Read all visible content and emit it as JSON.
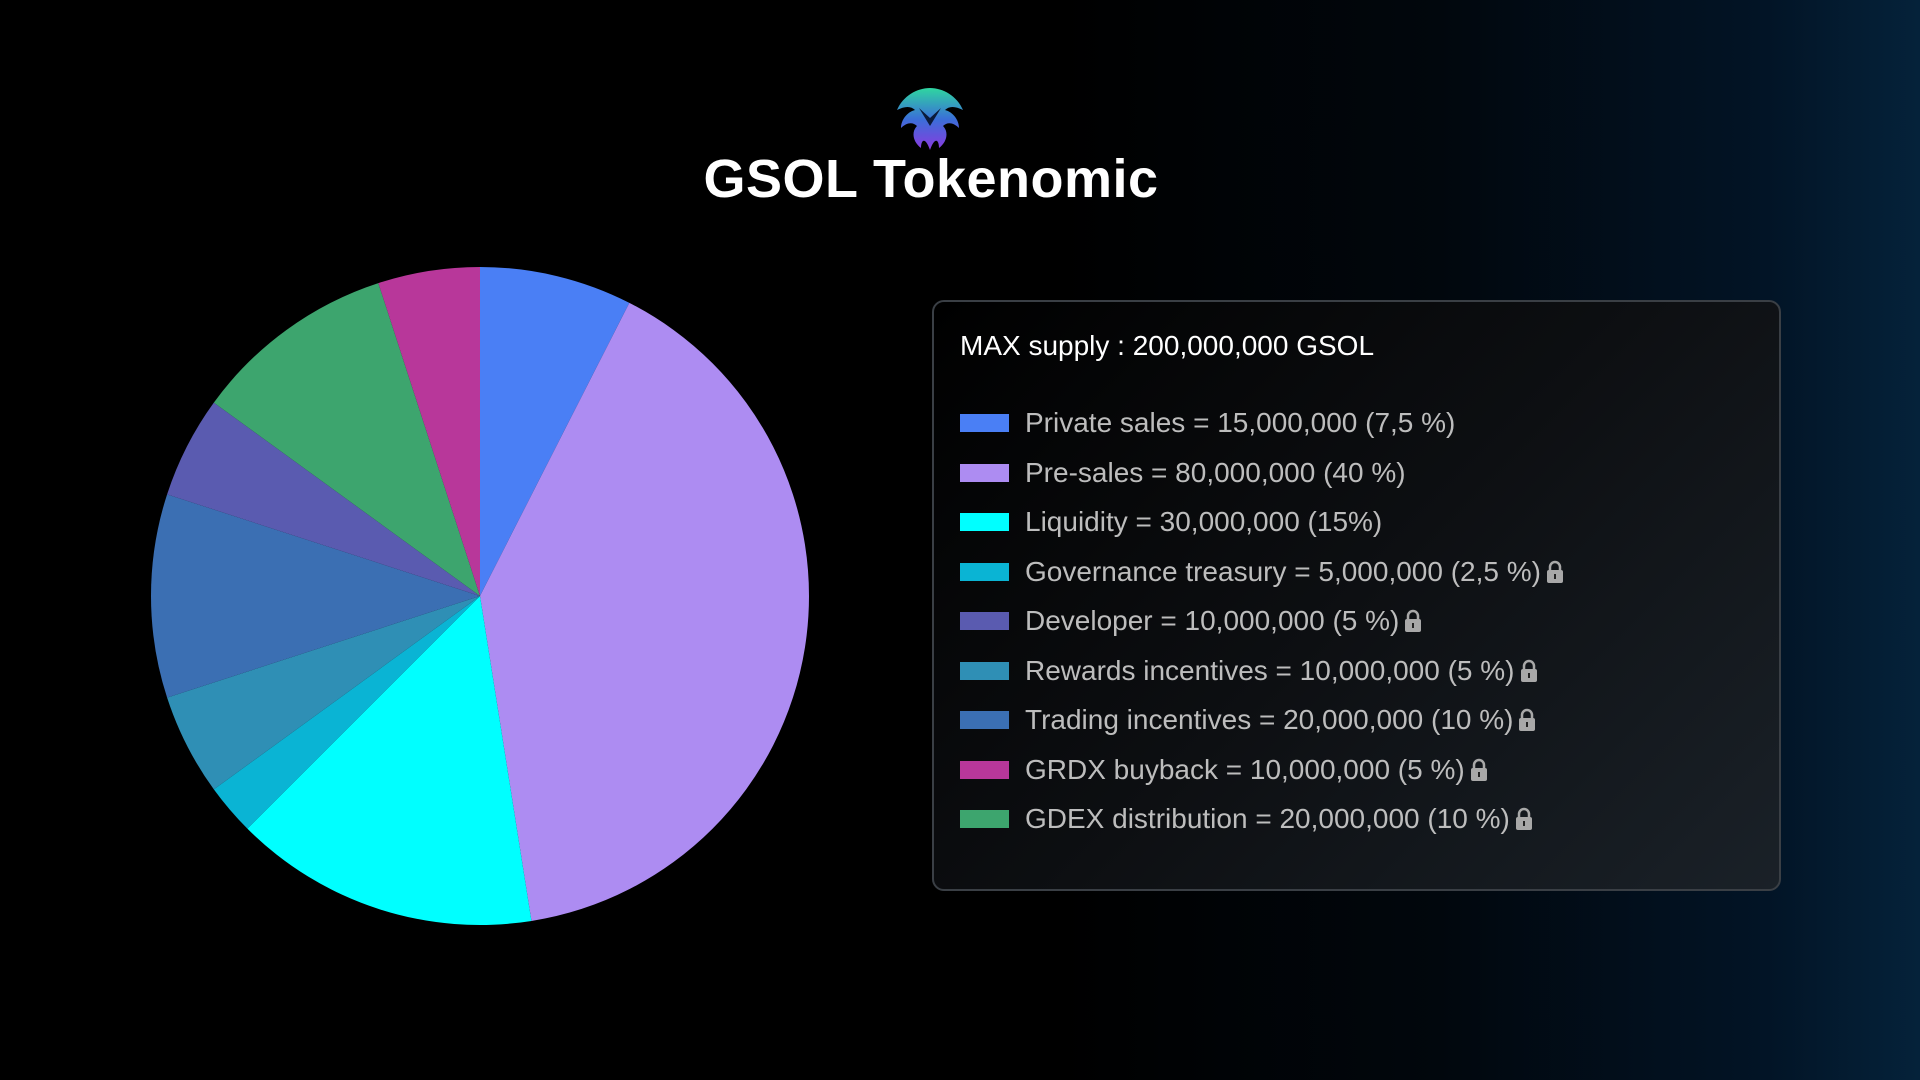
{
  "header": {
    "title": "GSOL Tokenomic",
    "logo": "GSOL eagle logo"
  },
  "chart_data": {
    "type": "pie",
    "title": "GSOL Tokenomic",
    "total_supply_label": "MAX supply : 200,000,000 GSOL",
    "total_supply": 200000000,
    "start_angle_deg": 0,
    "direction": "clockwise",
    "slices": [
      {
        "name": "Private sales",
        "value": 15000000,
        "percent": 7.5,
        "color": "#4a7ff5",
        "label": "Private sales = 15,000,000 (7,5 %)",
        "locked": false
      },
      {
        "name": "Pre-sales",
        "value": 80000000,
        "percent": 40,
        "color": "#ad8cf2",
        "label": "Pre-sales = 80,000,000 (40 %)",
        "locked": false
      },
      {
        "name": "Liquidity",
        "value": 30000000,
        "percent": 15,
        "color": "#00ffff",
        "label": "Liquidity = 30,000,000 (15%)",
        "locked": false
      },
      {
        "name": "Governance treasury",
        "value": 5000000,
        "percent": 2.5,
        "color": "#0ab4d4",
        "label": "Governance treasury = 5,000,000 (2,5 %)",
        "locked": true
      },
      {
        "name": "Rewards incentives",
        "value": 10000000,
        "percent": 5,
        "color": "#2f8fb5",
        "label": "Rewards incentives = 10,000,000 (5 %)",
        "locked": true
      },
      {
        "name": "Trading incentives",
        "value": 20000000,
        "percent": 10,
        "color": "#3b6fb3",
        "label": "Trading incentives = 20,000,000 (10 %)",
        "locked": true
      },
      {
        "name": "Developer",
        "value": 10000000,
        "percent": 5,
        "color": "#5a5bb0",
        "label": "Developer = 10,000,000 (5 %)",
        "locked": true
      },
      {
        "name": "GDEX distribution",
        "value": 20000000,
        "percent": 10,
        "color": "#3da56e",
        "label": "GDEX distribution = 20,000,000 (10 %)",
        "locked": true
      },
      {
        "name": "GRDX buyback",
        "value": 10000000,
        "percent": 5,
        "color": "#b8379a",
        "label": "GRDX buyback = 10,000,000 (5 %)",
        "locked": true
      }
    ],
    "legend_order": [
      0,
      1,
      2,
      3,
      6,
      4,
      5,
      8,
      7
    ],
    "legend_placement": "right"
  }
}
